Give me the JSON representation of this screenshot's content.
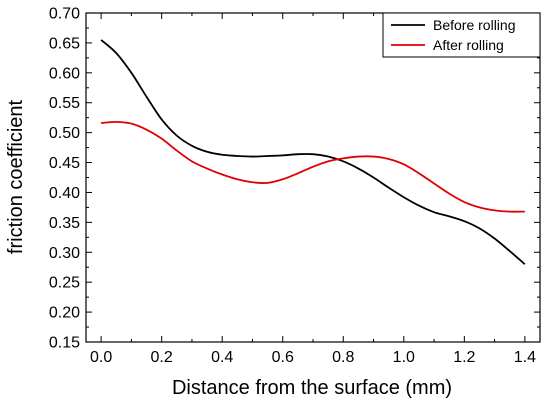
{
  "chart_data": {
    "type": "line",
    "xlabel": "Distance from the surface (mm)",
    "ylabel": "friction coefficient",
    "xlim": [
      -0.05,
      1.45
    ],
    "ylim": [
      0.15,
      0.7
    ],
    "x_ticks": [
      "0.0",
      "0.2",
      "0.4",
      "0.6",
      "0.8",
      "1.0",
      "1.2",
      "1.4"
    ],
    "y_ticks": [
      "0.15",
      "0.20",
      "0.25",
      "0.30",
      "0.35",
      "0.40",
      "0.45",
      "0.50",
      "0.55",
      "0.60",
      "0.65",
      "0.70"
    ],
    "grid": false,
    "legend_position": "top-right",
    "series": [
      {
        "name": "Before rolling",
        "color": "#000000",
        "x": [
          0.0,
          0.05,
          0.1,
          0.15,
          0.2,
          0.25,
          0.3,
          0.35,
          0.4,
          0.45,
          0.5,
          0.55,
          0.6,
          0.65,
          0.7,
          0.75,
          0.8,
          0.85,
          0.9,
          0.95,
          1.0,
          1.05,
          1.1,
          1.15,
          1.2,
          1.25,
          1.3,
          1.35,
          1.4
        ],
        "y": [
          0.655,
          0.633,
          0.6,
          0.56,
          0.522,
          0.495,
          0.478,
          0.468,
          0.463,
          0.461,
          0.46,
          0.461,
          0.462,
          0.464,
          0.464,
          0.46,
          0.452,
          0.44,
          0.425,
          0.408,
          0.392,
          0.378,
          0.367,
          0.36,
          0.352,
          0.34,
          0.323,
          0.302,
          0.28
        ]
      },
      {
        "name": "After rolling",
        "color": "#e00000",
        "x": [
          0.0,
          0.05,
          0.1,
          0.15,
          0.2,
          0.25,
          0.3,
          0.35,
          0.4,
          0.45,
          0.5,
          0.55,
          0.6,
          0.65,
          0.7,
          0.75,
          0.8,
          0.85,
          0.9,
          0.95,
          1.0,
          1.05,
          1.1,
          1.15,
          1.2,
          1.25,
          1.3,
          1.35,
          1.4
        ],
        "y": [
          0.516,
          0.518,
          0.515,
          0.505,
          0.49,
          0.47,
          0.452,
          0.44,
          0.43,
          0.422,
          0.417,
          0.416,
          0.422,
          0.432,
          0.443,
          0.452,
          0.457,
          0.46,
          0.46,
          0.456,
          0.447,
          0.432,
          0.415,
          0.398,
          0.384,
          0.375,
          0.37,
          0.368,
          0.368
        ]
      }
    ]
  }
}
